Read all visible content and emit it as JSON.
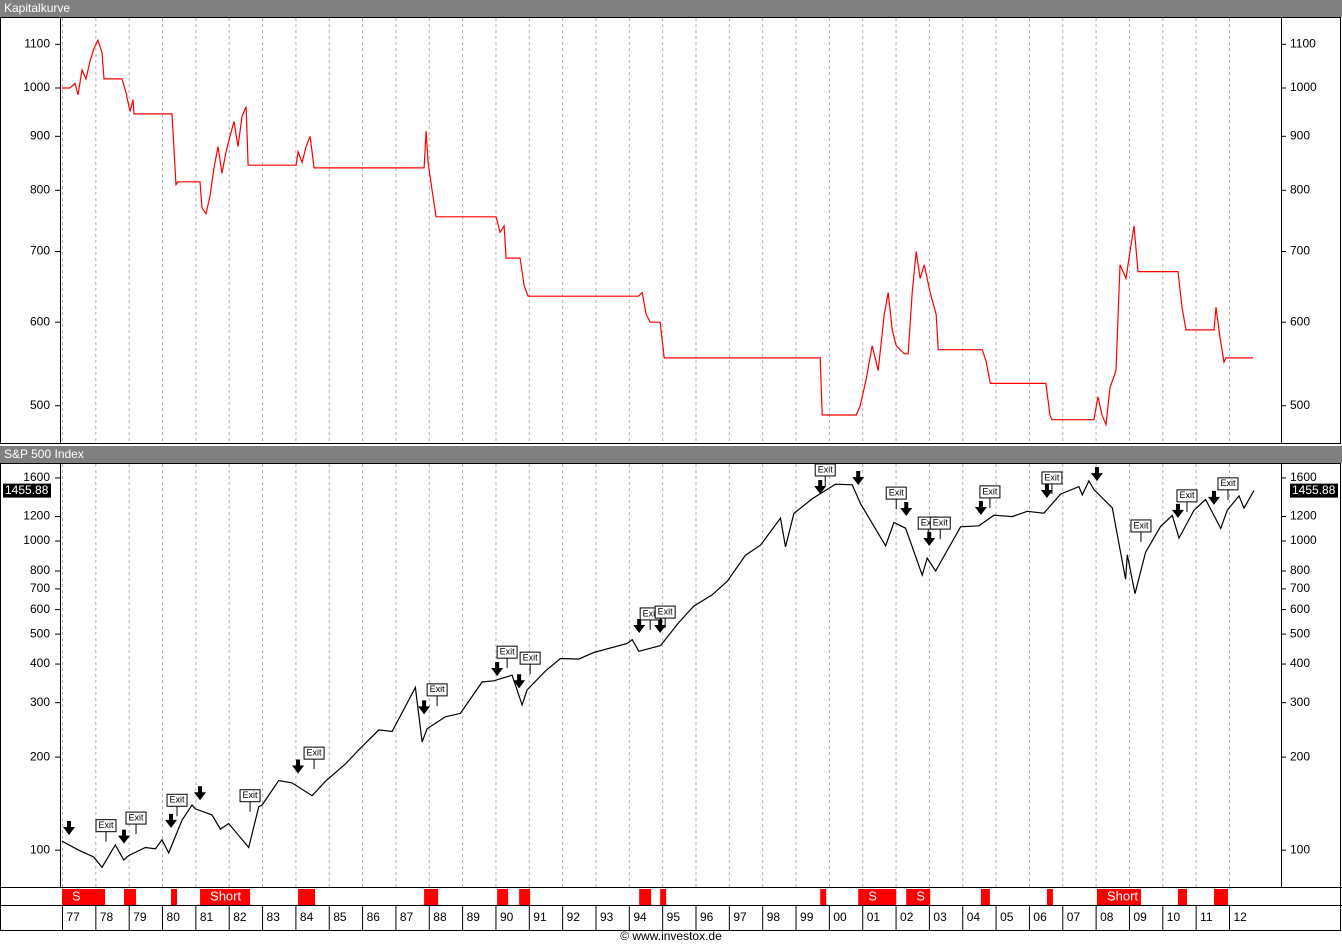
{
  "chart_data": [
    {
      "type": "line",
      "title": "Kapitalkurve",
      "log_y": true,
      "xlim": [
        1976.94,
        2013.56
      ],
      "ylim": [
        462,
        1165
      ],
      "yticks": [
        500,
        600,
        700,
        800,
        900,
        1000,
        1100
      ],
      "series": [
        {
          "name": "Kapitalkurve",
          "color": "#ff0000",
          "x": [
            1977.0,
            1977.24,
            1977.39,
            1977.48,
            1977.6,
            1977.72,
            1977.84,
            1977.96,
            1978.08,
            1978.2,
            1978.26,
            1978.8,
            1978.92,
            1979.04,
            1979.13,
            1979.16,
            1980.3,
            1980.42,
            1980.48,
            1981.14,
            1981.2,
            1981.32,
            1981.44,
            1981.56,
            1981.68,
            1981.8,
            1981.92,
            1982.04,
            1982.16,
            1982.28,
            1982.4,
            1982.52,
            1982.58,
            1984.02,
            1984.08,
            1984.2,
            1984.32,
            1984.44,
            1984.56,
            1987.86,
            1987.92,
            1987.98,
            1988.1,
            1988.22,
            1990.02,
            1990.14,
            1990.26,
            1990.32,
            1990.74,
            1990.86,
            1990.98,
            1994.28,
            1994.4,
            1994.52,
            1994.64,
            1994.94,
            1995.06,
            1999.74,
            1999.8,
            2000.82,
            2000.94,
            2001.12,
            2001.3,
            2001.48,
            2001.66,
            2001.78,
            2001.9,
            2002.02,
            2002.26,
            2002.38,
            2002.5,
            2002.62,
            2002.74,
            2002.86,
            2003.04,
            2003.22,
            2003.28,
            2004.6,
            2004.72,
            2004.84,
            2006.51,
            2006.63,
            2006.69,
            2007.95,
            2008.07,
            2008.19,
            2008.31,
            2008.43,
            2008.61,
            2008.73,
            2008.91,
            2009.03,
            2009.15,
            2009.27,
            2009.33,
            2010.47,
            2010.59,
            2010.71,
            2011.55,
            2011.61,
            2011.73,
            2011.85,
            2011.91,
            2012.72
          ],
          "values": [
            1000,
            1000,
            1010,
            985,
            1040,
            1020,
            1060,
            1090,
            1110,
            1080,
            1020,
            1020,
            990,
            950,
            975,
            945,
            945,
            810,
            815,
            815,
            770,
            760,
            790,
            840,
            880,
            830,
            870,
            900,
            930,
            880,
            940,
            960,
            845,
            845,
            870,
            850,
            880,
            900,
            840,
            840,
            910,
            850,
            800,
            755,
            755,
            730,
            740,
            690,
            690,
            650,
            635,
            635,
            640,
            610,
            600,
            600,
            555,
            555,
            490,
            490,
            500,
            530,
            570,
            540,
            610,
            640,
            590,
            570,
            560,
            560,
            640,
            700,
            660,
            680,
            640,
            610,
            565,
            565,
            550,
            525,
            525,
            490,
            485,
            485,
            510,
            490,
            480,
            520,
            540,
            680,
            660,
            700,
            740,
            670,
            670,
            670,
            620,
            590,
            590,
            620,
            580,
            550,
            555,
            555
          ]
        }
      ]
    },
    {
      "type": "line",
      "title": "S&P 500 Index",
      "log_y": true,
      "xlim": [
        1976.94,
        2013.56
      ],
      "ylim": [
        76,
        1775
      ],
      "yticks": [
        100,
        200,
        300,
        400,
        500,
        600,
        700,
        800,
        1000,
        1200,
        1600
      ],
      "xticks": [
        {
          "value": 1977,
          "label": "77"
        },
        {
          "value": 1978,
          "label": "78"
        },
        {
          "value": 1979,
          "label": "79"
        },
        {
          "value": 1980,
          "label": "80"
        },
        {
          "value": 1981,
          "label": "81"
        },
        {
          "value": 1982,
          "label": "82"
        },
        {
          "value": 1983,
          "label": "83"
        },
        {
          "value": 1984,
          "label": "84"
        },
        {
          "value": 1985,
          "label": "85"
        },
        {
          "value": 1986,
          "label": "86"
        },
        {
          "value": 1987,
          "label": "87"
        },
        {
          "value": 1988,
          "label": "88"
        },
        {
          "value": 1989,
          "label": "89"
        },
        {
          "value": 1990,
          "label": "90"
        },
        {
          "value": 1991,
          "label": "91"
        },
        {
          "value": 1992,
          "label": "92"
        },
        {
          "value": 1993,
          "label": "93"
        },
        {
          "value": 1994,
          "label": "94"
        },
        {
          "value": 1995,
          "label": "95"
        },
        {
          "value": 1996,
          "label": "96"
        },
        {
          "value": 1997,
          "label": "97"
        },
        {
          "value": 1998,
          "label": "98"
        },
        {
          "value": 1999,
          "label": "99"
        },
        {
          "value": 2000,
          "label": "00"
        },
        {
          "value": 2001,
          "label": "01"
        },
        {
          "value": 2002,
          "label": "02"
        },
        {
          "value": 2003,
          "label": "03"
        },
        {
          "value": 2004,
          "label": "04"
        },
        {
          "value": 2005,
          "label": "05"
        },
        {
          "value": 2006,
          "label": "06"
        },
        {
          "value": 2007,
          "label": "07"
        },
        {
          "value": 2008,
          "label": "08"
        },
        {
          "value": 2009,
          "label": "09"
        },
        {
          "value": 2010,
          "label": "10"
        },
        {
          "value": 2011,
          "label": "11"
        },
        {
          "value": 2012,
          "label": "12"
        }
      ],
      "series": [
        {
          "name": "S&P 500 Index",
          "color": "#000000",
          "x": [
            1977.0,
            1977.5,
            1977.95,
            1978.2,
            1978.6,
            1978.85,
            1979.0,
            1979.5,
            1979.8,
            1980.0,
            1980.2,
            1980.6,
            1980.9,
            1981.0,
            1981.5,
            1981.75,
            1982.0,
            1982.6,
            1982.9,
            1983.0,
            1983.5,
            1983.9,
            1984.5,
            1984.9,
            1985.5,
            1985.9,
            1986.5,
            1986.9,
            1987.6,
            1987.8,
            1987.95,
            1988.5,
            1988.95,
            1989.6,
            1989.95,
            1990.5,
            1990.8,
            1990.95,
            1991.5,
            1991.95,
            1992.5,
            1992.95,
            1993.95,
            1994.1,
            1994.3,
            1994.95,
            1995.5,
            1995.95,
            1996.5,
            1996.95,
            1997.5,
            1997.95,
            1998.55,
            1998.7,
            1998.95,
            1999.5,
            1999.95,
            2000.2,
            2000.7,
            2000.95,
            2001.7,
            2001.95,
            2002.3,
            2002.8,
            2002.95,
            2003.2,
            2003.95,
            2004.5,
            2004.95,
            2005.5,
            2005.95,
            2006.45,
            2006.95,
            2007.5,
            2007.6,
            2007.8,
            2007.95,
            2008.5,
            2008.9,
            2008.95,
            2009.18,
            2009.5,
            2009.95,
            2010.3,
            2010.5,
            2010.95,
            2011.3,
            2011.75,
            2011.95,
            2012.3,
            2012.45,
            2012.75
          ],
          "values": [
            107,
            100,
            95,
            88,
            104,
            93,
            96,
            102,
            101,
            108,
            98,
            125,
            140,
            136,
            130,
            117,
            122,
            102,
            138,
            140,
            168,
            165,
            150,
            167,
            190,
            211,
            245,
            242,
            336,
            224,
            247,
            270,
            277,
            350,
            353,
            368,
            295,
            330,
            380,
            417,
            415,
            436,
            466,
            480,
            440,
            459,
            545,
            616,
            670,
            741,
            900,
            970,
            1186,
            957,
            1229,
            1370,
            1469,
            1527,
            1520,
            1320,
            965,
            1148,
            1100,
            776,
            880,
            800,
            1112,
            1120,
            1212,
            1200,
            1248,
            1230,
            1418,
            1500,
            1410,
            1565,
            1468,
            1280,
            752,
            903,
            676,
            920,
            1115,
            1210,
            1022,
            1258,
            1363,
            1099,
            1258,
            1400,
            1278,
            1455.88
          ]
        }
      ],
      "annotations": [
        {
          "x": 1978.32,
          "y": 120,
          "text": "Exit"
        },
        {
          "x": 1979.22,
          "y": 127,
          "text": "Exit"
        },
        {
          "x": 1980.45,
          "y": 145,
          "text": "Exit"
        },
        {
          "x": 1982.64,
          "y": 150,
          "text": "Exit"
        },
        {
          "x": 1984.56,
          "y": 206,
          "text": "Exit"
        },
        {
          "x": 1988.25,
          "y": 330,
          "text": "Exit"
        },
        {
          "x": 1990.35,
          "y": 437,
          "text": "Exit"
        },
        {
          "x": 1991.04,
          "y": 418,
          "text": "Exit"
        },
        {
          "x": 1994.64,
          "y": 581,
          "text": "Exit"
        },
        {
          "x": 1995.09,
          "y": 589,
          "text": "Exit"
        },
        {
          "x": 1999.89,
          "y": 1698,
          "text": "Exit"
        },
        {
          "x": 2002.02,
          "y": 1429,
          "text": "Exit"
        },
        {
          "x": 2002.98,
          "y": 1143,
          "text": "Exit"
        },
        {
          "x": 2003.34,
          "y": 1143,
          "text": "Exit"
        },
        {
          "x": 2004.83,
          "y": 1442,
          "text": "Exit"
        },
        {
          "x": 2006.69,
          "y": 1600,
          "text": "Exit"
        },
        {
          "x": 2009.36,
          "y": 1119,
          "text": "Exit"
        },
        {
          "x": 2010.74,
          "y": 1400,
          "text": "Exit"
        },
        {
          "x": 2011.97,
          "y": 1531,
          "text": "Exit"
        }
      ],
      "entries": [
        {
          "x": 1977.21,
          "y": 112
        },
        {
          "x": 1978.86,
          "y": 105
        },
        {
          "x": 1980.27,
          "y": 118
        },
        {
          "x": 1981.14,
          "y": 145
        },
        {
          "x": 1984.08,
          "y": 177
        },
        {
          "x": 1987.86,
          "y": 275
        },
        {
          "x": 1990.05,
          "y": 366
        },
        {
          "x": 1990.71,
          "y": 334
        },
        {
          "x": 1994.31,
          "y": 504
        },
        {
          "x": 1994.94,
          "y": 504
        },
        {
          "x": 1999.74,
          "y": 1419
        },
        {
          "x": 2000.88,
          "y": 1518
        },
        {
          "x": 2002.32,
          "y": 1205
        },
        {
          "x": 2003.01,
          "y": 964
        },
        {
          "x": 2004.56,
          "y": 1214
        },
        {
          "x": 2006.54,
          "y": 1378
        },
        {
          "x": 2008.04,
          "y": 1563
        },
        {
          "x": 2010.47,
          "y": 1188
        },
        {
          "x": 2011.55,
          "y": 1309
        }
      ],
      "positions": [
        {
          "start": 1977.0,
          "end": 1978.29,
          "label": "S"
        },
        {
          "start": 1978.86,
          "end": 1979.22
        },
        {
          "start": 1980.27,
          "end": 1980.45
        },
        {
          "start": 1981.14,
          "end": 1982.64,
          "label": "Short"
        },
        {
          "start": 1984.08,
          "end": 1984.59
        },
        {
          "start": 1987.86,
          "end": 1988.28
        },
        {
          "start": 1990.05,
          "end": 1990.38
        },
        {
          "start": 1990.71,
          "end": 1991.04
        },
        {
          "start": 1994.31,
          "end": 1994.67
        },
        {
          "start": 1994.94,
          "end": 1995.12
        },
        {
          "start": 1999.74,
          "end": 1999.92
        },
        {
          "start": 2000.88,
          "end": 2002.02,
          "label": "S"
        },
        {
          "start": 2002.32,
          "end": 2003.04,
          "label": "S"
        },
        {
          "start": 2004.56,
          "end": 2004.83
        },
        {
          "start": 2006.54,
          "end": 2006.72
        },
        {
          "start": 2008.04,
          "end": 2009.36,
          "label": "Short"
        },
        {
          "start": 2010.47,
          "end": 2010.74
        },
        {
          "start": 2011.55,
          "end": 2011.97
        }
      ]
    }
  ],
  "footer": "© www.investox.de"
}
